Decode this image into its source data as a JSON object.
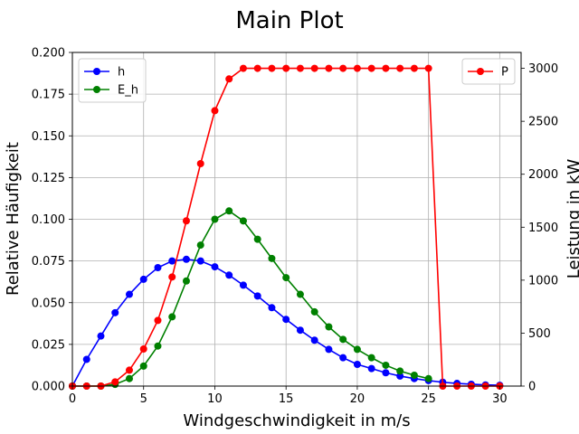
{
  "chart_data": {
    "type": "line",
    "title": "Main Plot",
    "xlabel": "Windgeschwindigkeit in m/s",
    "ylabel_left": "Relative Häufigkeit",
    "ylabel_right": "Leistung in kW",
    "xlim": [
      0,
      31.5
    ],
    "ylim_left": [
      0,
      0.2
    ],
    "ylim_right": [
      0,
      3150
    ],
    "x_ticks": [
      "0",
      "5",
      "10",
      "15",
      "20",
      "25",
      "30"
    ],
    "y_left_ticks": [
      "0.000",
      "0.025",
      "0.050",
      "0.075",
      "0.100",
      "0.125",
      "0.150",
      "0.175",
      "0.200"
    ],
    "y_right_ticks": [
      "0",
      "500",
      "1000",
      "1500",
      "2000",
      "2500",
      "3000"
    ],
    "grid": true,
    "legend_left": "top-left",
    "legend_right": "top-right",
    "series": [
      {
        "name": "h",
        "axis": "left",
        "color": "#0000ff",
        "x": [
          0,
          1,
          2,
          3,
          4,
          5,
          6,
          7,
          8,
          9,
          10,
          11,
          12,
          13,
          14,
          15,
          16,
          17,
          18,
          19,
          20,
          21,
          22,
          23,
          24,
          25,
          26,
          27,
          28,
          29,
          30
        ],
        "values": [
          0.0,
          0.016,
          0.03,
          0.044,
          0.055,
          0.064,
          0.071,
          0.075,
          0.076,
          0.075,
          0.0715,
          0.0665,
          0.0605,
          0.054,
          0.047,
          0.04,
          0.0335,
          0.0275,
          0.022,
          0.017,
          0.013,
          0.0105,
          0.008,
          0.006,
          0.0045,
          0.0033,
          0.0023,
          0.0016,
          0.0011,
          0.0007,
          0.0005
        ]
      },
      {
        "name": "E_h",
        "axis": "left",
        "color": "#008000",
        "x": [
          0,
          1,
          2,
          3,
          4,
          5,
          6,
          7,
          8,
          9,
          10,
          11,
          12,
          13,
          14,
          15,
          16,
          17,
          18,
          19,
          20,
          21,
          22,
          23,
          24,
          25
        ],
        "values": [
          0.0,
          0.0,
          0.0,
          0.001,
          0.0045,
          0.012,
          0.024,
          0.0415,
          0.063,
          0.0845,
          0.1,
          0.105,
          0.099,
          0.088,
          0.0765,
          0.065,
          0.055,
          0.0445,
          0.0355,
          0.028,
          0.022,
          0.017,
          0.0125,
          0.009,
          0.0065,
          0.0045
        ]
      },
      {
        "name": "P",
        "axis": "right",
        "color": "#ff0000",
        "x": [
          0,
          1,
          2,
          3,
          4,
          5,
          6,
          7,
          8,
          9,
          10,
          11,
          12,
          13,
          14,
          15,
          16,
          17,
          18,
          19,
          20,
          21,
          22,
          23,
          24,
          25,
          26,
          27,
          28,
          29,
          30
        ],
        "values": [
          0,
          0,
          0,
          40,
          150,
          350,
          620,
          1030,
          1560,
          2100,
          2600,
          2900,
          3000,
          3000,
          3000,
          3000,
          3000,
          3000,
          3000,
          3000,
          3000,
          3000,
          3000,
          3000,
          3000,
          3000,
          0,
          0,
          0,
          0,
          0
        ]
      }
    ]
  }
}
